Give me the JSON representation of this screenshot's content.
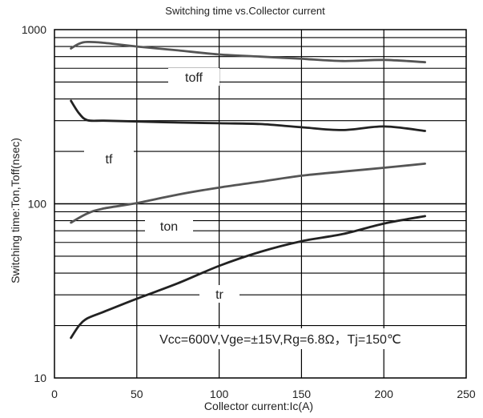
{
  "chart_data": {
    "type": "line",
    "title": "Switching time vs.Collector current",
    "xlabel": "Collector current:Ic(A)",
    "ylabel": "Switching time:Ton,Toff(nsec)",
    "xlim": [
      0,
      250
    ],
    "ylim": [
      10,
      1000
    ],
    "yscale": "log",
    "x_ticks": [
      "0",
      "50",
      "100",
      "150",
      "200",
      "250"
    ],
    "y_ticks": [
      "10",
      "100",
      "1000"
    ],
    "grid": true,
    "condition_text": "Vcc=600V,Vge=±15V,Rg=6.8Ω，Tj=150℃",
    "series": [
      {
        "name": "toff",
        "color": "#555555",
        "x": [
          10,
          15,
          20,
          30,
          50,
          75,
          100,
          125,
          150,
          175,
          200,
          225
        ],
        "y": [
          780,
          830,
          850,
          840,
          800,
          760,
          720,
          700,
          680,
          660,
          670,
          650
        ]
      },
      {
        "name": "tf",
        "color": "#222222",
        "x": [
          10,
          15,
          20,
          30,
          50,
          75,
          100,
          125,
          150,
          175,
          200,
          225
        ],
        "y": [
          390,
          330,
          302,
          300,
          297,
          293,
          290,
          287,
          275,
          265,
          278,
          262
        ]
      },
      {
        "name": "ton",
        "color": "#555555",
        "x": [
          10,
          20,
          30,
          50,
          75,
          100,
          125,
          150,
          175,
          200,
          225
        ],
        "y": [
          78,
          88,
          94,
          101,
          113,
          124,
          134,
          145,
          153,
          161,
          170
        ]
      },
      {
        "name": "tr",
        "color": "#222222",
        "x": [
          10,
          15,
          20,
          30,
          50,
          75,
          100,
          125,
          150,
          175,
          200,
          225
        ],
        "y": [
          17,
          20,
          22,
          24,
          28.5,
          35,
          44,
          53,
          61,
          67,
          77,
          85
        ]
      }
    ]
  }
}
